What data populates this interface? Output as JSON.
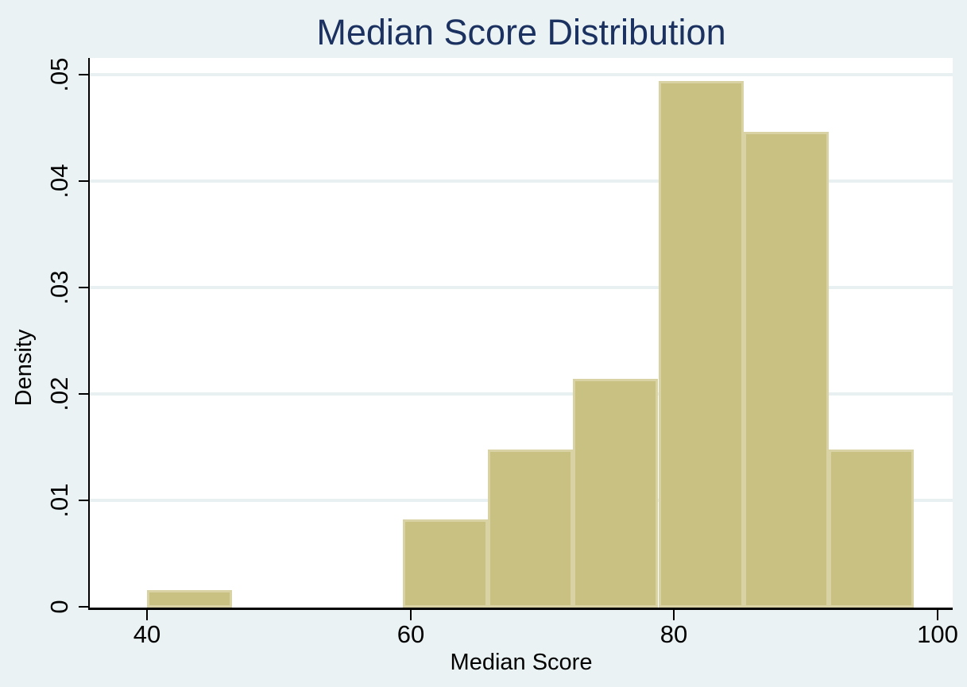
{
  "title": "Median Score Distribution",
  "chart_data": {
    "type": "histogram",
    "title": "Median Score Distribution",
    "xlabel": "Median Score",
    "ylabel": "Density",
    "xlim": [
      35.7,
      101.2
    ],
    "ylim": [
      0,
      0.05
    ],
    "grid": "horizontal-only",
    "x_ticks": [
      {
        "value": 40,
        "label": "40"
      },
      {
        "value": 60,
        "label": "60"
      },
      {
        "value": 80,
        "label": "80"
      },
      {
        "value": 100,
        "label": "100"
      }
    ],
    "y_ticks": [
      {
        "value": 0,
        "label": "0",
        "grid": false
      },
      {
        "value": 0.01,
        "label": ".01",
        "grid": true
      },
      {
        "value": 0.02,
        "label": ".02",
        "grid": true
      },
      {
        "value": 0.03,
        "label": ".03",
        "grid": true
      },
      {
        "value": 0.04,
        "label": ".04",
        "grid": true
      },
      {
        "value": 0.05,
        "label": ".05",
        "grid": true
      }
    ],
    "bin_width": 6.47,
    "bins": [
      {
        "x0": 40.0,
        "x1": 46.47,
        "density": 0.0016
      },
      {
        "x0": 46.47,
        "x1": 52.94,
        "density": 0
      },
      {
        "x0": 52.94,
        "x1": 59.41,
        "density": 0
      },
      {
        "x0": 59.41,
        "x1": 65.88,
        "density": 0.0082
      },
      {
        "x0": 65.88,
        "x1": 72.35,
        "density": 0.0148
      },
      {
        "x0": 72.35,
        "x1": 78.82,
        "density": 0.0214
      },
      {
        "x0": 78.82,
        "x1": 85.29,
        "density": 0.0494
      },
      {
        "x0": 85.29,
        "x1": 91.76,
        "density": 0.0446
      },
      {
        "x0": 91.76,
        "x1": 98.23,
        "density": 0.0148
      }
    ],
    "colors": {
      "background": "#eaf2f3",
      "plot_background": "#ffffff",
      "gridline": "#e8f0f2",
      "bar_fill": "#c9c182",
      "bar_border": "#d8d2a4",
      "title_text": "#1b3160",
      "axis_text": "#000000",
      "axis_line": "#000000"
    }
  }
}
